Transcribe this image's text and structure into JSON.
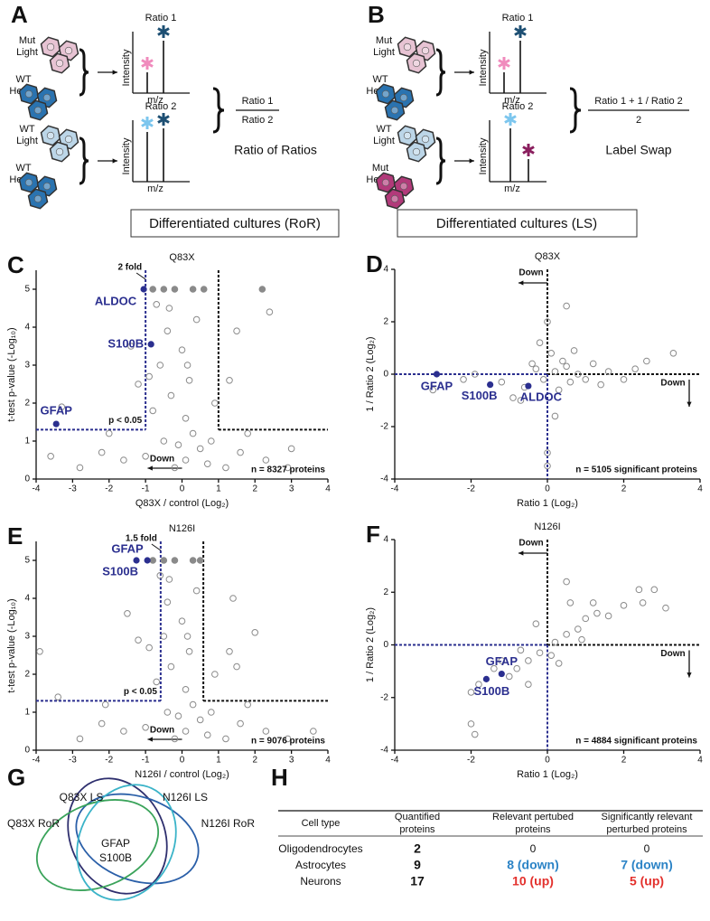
{
  "panel_labels": [
    "A",
    "B",
    "C",
    "D",
    "E",
    "F",
    "G",
    "H"
  ],
  "schemes": [
    {
      "groups": [
        {
          "top": [
            "Mut",
            "Light"
          ],
          "bottom": [
            "WT",
            "Heavy"
          ],
          "top_color": "#e7c3d3",
          "bottom_color": "#2a73b0",
          "ratio": "Ratio 1",
          "peak_colors": [
            "#f08bbd",
            "#1d4f73"
          ]
        },
        {
          "top": [
            "WT",
            "Light"
          ],
          "bottom": [
            "WT",
            "Heavy"
          ],
          "top_color": "#bcd6e8",
          "bottom_color": "#2a73b0",
          "ratio": "Ratio 2",
          "peak_colors": [
            "#7cc6ee",
            "#1d4f73"
          ]
        }
      ],
      "axis_y": "Intensity",
      "axis_x": "m/z",
      "formula": [
        "Ratio 1",
        "Ratio 2"
      ],
      "name": "Ratio of Ratios"
    },
    {
      "groups": [
        {
          "top": [
            "Mut",
            "Light"
          ],
          "bottom": [
            "WT",
            "Heavy"
          ],
          "top_color": "#e7c3d3",
          "bottom_color": "#2a73b0",
          "ratio": "Ratio 1",
          "peak_colors": [
            "#f08bbd",
            "#1d4f73"
          ]
        },
        {
          "top": [
            "WT",
            "Light"
          ],
          "bottom": [
            "Mut",
            "Heavy"
          ],
          "top_color": "#bcd6e8",
          "bottom_color": "#b23a7a",
          "ratio": "Ratio 2",
          "peak_colors": [
            "#7cc6ee",
            "#8a1f5e"
          ]
        }
      ],
      "axis_y": "Intensity",
      "axis_x": "m/z",
      "formula": [
        "Ratio 1 + 1 / Ratio 2",
        "2"
      ],
      "name": "Label Swap"
    }
  ],
  "section_headers": [
    "Differentiated cultures  (RoR)",
    "Differentiated cultures  (LS)"
  ],
  "chart_data": [
    {
      "type": "volcano",
      "title": "Q83X",
      "x_label": "Q83X / control (Log₂)",
      "y_label": "t-test p-value (-Log₁₀)",
      "xlim": [
        -4,
        4
      ],
      "xticks": [
        -4,
        -3,
        -2,
        -1,
        0,
        1,
        2,
        3,
        4
      ],
      "ylim": [
        0,
        5.5
      ],
      "yticks": [
        0,
        1,
        2,
        3,
        4,
        5
      ],
      "color": "#8a8a8a",
      "highlight_color": "#2b2f8f",
      "fold_threshold": 1,
      "p_threshold": 1.3,
      "fold_label": "2 fold",
      "p_label": "p < 0.05",
      "down_label": "Down",
      "count_label": "n = 8327 proteins",
      "x": [
        -0.2,
        0.1,
        -0.5,
        0.3,
        -0.8,
        0.5,
        -0.3,
        0.2,
        -0.6,
        0.0,
        -0.4,
        0.4,
        -0.7,
        0.1,
        -0.1,
        0.7,
        -1.0,
        1.2,
        1.6,
        2.3,
        2.9,
        -1.6,
        -2.2,
        -2.8,
        -3.3,
        -1.4,
        -1.2,
        2.2,
        2.4,
        1.3,
        1.5,
        0.9,
        -0.2,
        -0.5,
        -0.8,
        0.3,
        0.6,
        -0.35,
        0.15,
        -0.9,
        1.8,
        -2.0,
        3.0,
        -3.6,
        0.8
      ],
      "values": [
        0.3,
        0.5,
        1.0,
        1.2,
        1.8,
        0.8,
        2.2,
        2.6,
        3.0,
        3.4,
        3.9,
        4.2,
        4.6,
        1.6,
        0.9,
        0.4,
        0.6,
        0.3,
        0.7,
        0.5,
        0.3,
        0.5,
        0.7,
        0.3,
        1.9,
        3.5,
        2.5,
        5.0,
        4.4,
        2.6,
        3.9,
        2.0,
        5.0,
        5.0,
        5.0,
        5.0,
        5.0,
        4.5,
        3.0,
        2.7,
        1.2,
        1.2,
        0.8,
        0.6,
        1.0
      ],
      "highlights": [
        {
          "label": "ALDOC",
          "x": -1.05,
          "y": 5.0
        },
        {
          "label": "S100B",
          "x": -0.85,
          "y": 3.55
        },
        {
          "label": "GFAP",
          "x": -3.45,
          "y": 1.45
        }
      ]
    },
    {
      "type": "ls",
      "title": "Q83X",
      "x_label": "Ratio 1 (Log₂)",
      "y_label": "1 / Ratio 2 (Log₂)",
      "xlim": [
        -4,
        4
      ],
      "xticks": [
        -4,
        -2,
        0,
        2,
        4
      ],
      "ylim": [
        -4,
        4
      ],
      "yticks": [
        -4,
        -2,
        0,
        2,
        4
      ],
      "color": "#8a8a8a",
      "highlight_color": "#2b2f8f",
      "reference_lines": {
        "x": 0,
        "y": 0
      },
      "down_label": "Down",
      "count_label": "n = 5105 significant proteins",
      "x": [
        0.2,
        -0.1,
        0.5,
        0.8,
        -0.3,
        1.2,
        1.6,
        2.0,
        2.6,
        3.3,
        -0.6,
        -0.9,
        -1.2,
        0.3,
        0.6,
        0.1,
        -0.2,
        0.5,
        0.0,
        0.0,
        0.0,
        -0.7,
        -2.2,
        -1.9,
        1.0,
        0.4,
        -0.4,
        1.4,
        2.3,
        -3.0,
        0.7,
        0.2
      ],
      "values": [
        0.1,
        -0.2,
        0.3,
        0.0,
        0.2,
        0.4,
        0.1,
        -0.2,
        0.5,
        0.8,
        -0.5,
        -0.9,
        -0.3,
        -0.6,
        -0.3,
        0.8,
        1.2,
        2.6,
        2.0,
        -3.5,
        -3.0,
        -1.0,
        -0.2,
        0.0,
        -0.2,
        0.5,
        0.4,
        -0.4,
        0.2,
        -0.6,
        0.9,
        -1.6
      ],
      "highlights": [
        {
          "label": "GFAP",
          "x": -2.9,
          "y": 0.0
        },
        {
          "label": "S100B",
          "x": -1.5,
          "y": -0.4
        },
        {
          "label": "ALDOC",
          "x": -0.5,
          "y": -0.45
        }
      ]
    },
    {
      "type": "volcano",
      "title": "N126I",
      "x_label": "N126I / control (Log₂)",
      "y_label": "t-test p-value (-Log₁₀)",
      "xlim": [
        -4,
        4
      ],
      "xticks": [
        -4,
        -3,
        -2,
        -1,
        0,
        1,
        2,
        3,
        4
      ],
      "ylim": [
        0,
        5.5
      ],
      "yticks": [
        0,
        1,
        2,
        3,
        4,
        5
      ],
      "color": "#8a8a8a",
      "highlight_color": "#2b2f8f",
      "fold_threshold": 0.585,
      "p_threshold": 1.3,
      "fold_label": "1.5 fold",
      "p_label": "p < 0.05",
      "down_label": "Down",
      "count_label": "n = 9076 proteins",
      "x": [
        -0.2,
        0.1,
        -0.4,
        0.3,
        -0.7,
        0.5,
        -0.3,
        0.2,
        -0.5,
        0.0,
        -0.4,
        0.4,
        -0.6,
        0.1,
        -0.1,
        0.7,
        -1.0,
        1.2,
        1.6,
        2.3,
        2.9,
        -1.6,
        -2.2,
        -2.8,
        -3.4,
        -1.5,
        -1.2,
        1.4,
        2.0,
        1.3,
        1.5,
        0.9,
        -0.2,
        -0.5,
        -0.8,
        0.3,
        0.5,
        -0.35,
        0.15,
        -0.9,
        1.8,
        -2.1,
        3.6,
        -3.9,
        0.8
      ],
      "values": [
        0.3,
        0.5,
        1.0,
        1.2,
        1.8,
        0.8,
        2.2,
        2.6,
        3.0,
        3.4,
        3.9,
        4.2,
        4.6,
        1.6,
        0.9,
        0.4,
        0.6,
        0.3,
        0.7,
        0.5,
        0.3,
        0.5,
        0.7,
        0.3,
        1.4,
        3.6,
        2.9,
        4.0,
        3.1,
        2.6,
        2.2,
        2.0,
        5.0,
        5.0,
        5.0,
        5.0,
        5.0,
        4.5,
        3.0,
        2.7,
        1.2,
        1.2,
        0.5,
        2.6,
        1.0
      ],
      "highlights": [
        {
          "label": "GFAP",
          "x": -1.25,
          "y": 5.0
        },
        {
          "label": "S100B",
          "x": -0.95,
          "y": 5.0
        }
      ]
    },
    {
      "type": "ls",
      "title": "N126I",
      "x_label": "Ratio 1 (Log₂)",
      "y_label": "1 / Ratio 2 (Log₂)",
      "xlim": [
        -4,
        4
      ],
      "xticks": [
        -4,
        -2,
        0,
        2,
        4
      ],
      "ylim": [
        -4,
        4
      ],
      "yticks": [
        -4,
        -2,
        0,
        2,
        4
      ],
      "color": "#8a8a8a",
      "highlight_color": "#2b2f8f",
      "reference_lines": {
        "x": 0,
        "y": 0
      },
      "down_label": "Down",
      "count_label": "n = 4884 significant proteins",
      "x": [
        0.2,
        -0.2,
        0.5,
        0.8,
        -0.5,
        1.0,
        1.3,
        1.6,
        2.0,
        2.4,
        2.5,
        -0.8,
        -1.0,
        -1.4,
        -1.8,
        -2.0,
        -2.0,
        -1.9,
        -0.5,
        0.3,
        0.6,
        0.5,
        1.2,
        -0.3,
        -1.2,
        0.9,
        0.1,
        -0.7,
        3.1,
        2.8
      ],
      "values": [
        0.1,
        -0.3,
        0.4,
        0.6,
        -0.6,
        1.0,
        1.2,
        1.1,
        1.5,
        2.1,
        1.6,
        -0.9,
        -1.2,
        -0.9,
        -1.5,
        -1.8,
        -3.0,
        -3.4,
        -1.5,
        -0.7,
        1.6,
        2.4,
        1.6,
        0.8,
        -0.6,
        0.2,
        -0.4,
        -0.2,
        1.4,
        2.1
      ],
      "highlights": [
        {
          "label": "GFAP",
          "x": -1.2,
          "y": -1.1
        },
        {
          "label": "S100B",
          "x": -1.6,
          "y": -1.3
        }
      ]
    }
  ],
  "venn": {
    "sets": [
      "Q83X LS",
      "N126I LS",
      "Q83X RoR",
      "N126I RoR"
    ],
    "colors": [
      "#2e2f6e",
      "#2a5fa8",
      "#3aa35a",
      "#3ab3c8"
    ],
    "center": [
      "GFAP",
      "S100B"
    ]
  },
  "table": {
    "header": [
      [
        "Cell type"
      ],
      [
        "Quantified",
        "proteins"
      ],
      [
        "Relevant pertubed",
        "proteins"
      ],
      [
        "Significantly relevant",
        "perturbed proteins"
      ]
    ],
    "rows": [
      [
        "Oligodendrocytes",
        2,
        0,
        0
      ],
      [
        "Astrocytes",
        9,
        "8 (down)",
        "7 (down)"
      ],
      [
        "Neurons",
        17,
        "10 (up)",
        "5 (up)"
      ]
    ],
    "colors": [
      [
        "#111",
        "#111",
        "#111",
        "#111"
      ],
      [
        "#111",
        "#111",
        "#2b83c6",
        "#2b83c6"
      ],
      [
        "#111",
        "#111",
        "#e3302c",
        "#e3302c"
      ]
    ]
  }
}
